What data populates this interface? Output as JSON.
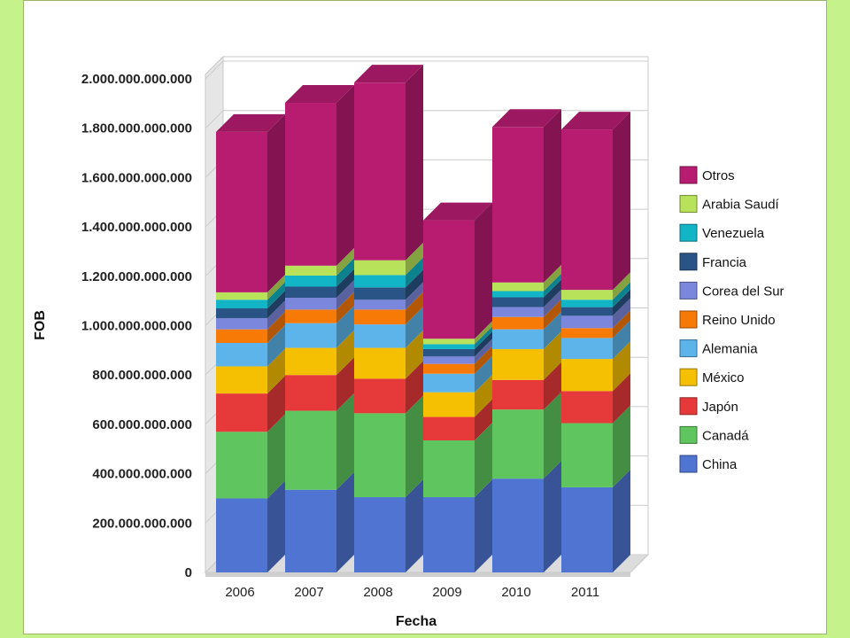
{
  "chart_data": {
    "type": "bar",
    "stacked": true,
    "three_d": true,
    "xlabel": "Fecha",
    "ylabel": "FOB",
    "ylim": [
      0,
      2000000000000
    ],
    "yticks": [
      0,
      200000000000,
      400000000000,
      600000000000,
      800000000000,
      1000000000000,
      1200000000000,
      1400000000000,
      1600000000000,
      1800000000000,
      2000000000000
    ],
    "ytick_labels": [
      "0",
      "200.000.000.000",
      "400.000.000.000",
      "600.000.000.000",
      "800.000.000.000",
      "1.000.000.000.000",
      "1.200.000.000.000",
      "1.400.000.000.000",
      "1.600.000.000.000",
      "1.800.000.000.000",
      "2.000.000.000.000"
    ],
    "categories": [
      "2006",
      "2007",
      "2008",
      "2009",
      "2010",
      "2011"
    ],
    "grid": true,
    "legend_position": "right",
    "series": [
      {
        "name": "China",
        "color": "#4f74d1",
        "values": [
          300000000000,
          335000000000,
          305000000000,
          305000000000,
          380000000000,
          345000000000
        ]
      },
      {
        "name": "Canadá",
        "color": "#5fc55f",
        "values": [
          270000000000,
          320000000000,
          340000000000,
          230000000000,
          280000000000,
          260000000000
        ]
      },
      {
        "name": "Japón",
        "color": "#e63a3a",
        "values": [
          155000000000,
          145000000000,
          140000000000,
          95000000000,
          120000000000,
          130000000000
        ]
      },
      {
        "name": "México",
        "color": "#f6c002",
        "values": [
          110000000000,
          110000000000,
          125000000000,
          100000000000,
          125000000000,
          130000000000
        ]
      },
      {
        "name": "Alemania",
        "color": "#5cb4eb",
        "values": [
          95000000000,
          100000000000,
          95000000000,
          75000000000,
          80000000000,
          85000000000
        ]
      },
      {
        "name": "Reino Unido",
        "color": "#f77a07",
        "values": [
          55000000000,
          55000000000,
          60000000000,
          40000000000,
          50000000000,
          40000000000
        ]
      },
      {
        "name": "Corea del Sur",
        "color": "#7b87dc",
        "values": [
          45000000000,
          48000000000,
          40000000000,
          30000000000,
          40000000000,
          50000000000
        ]
      },
      {
        "name": "Francia",
        "color": "#2a5485",
        "values": [
          40000000000,
          45000000000,
          50000000000,
          30000000000,
          40000000000,
          35000000000
        ]
      },
      {
        "name": "Venezuela",
        "color": "#12b5c6",
        "values": [
          35000000000,
          45000000000,
          50000000000,
          20000000000,
          25000000000,
          30000000000
        ]
      },
      {
        "name": "Arabia Saudí",
        "color": "#b8e259",
        "values": [
          30000000000,
          40000000000,
          60000000000,
          22000000000,
          35000000000,
          40000000000
        ]
      },
      {
        "name": "Otros",
        "color": "#b71c71",
        "values": [
          650000000000,
          660000000000,
          720000000000,
          480000000000,
          630000000000,
          650000000000
        ]
      }
    ]
  }
}
